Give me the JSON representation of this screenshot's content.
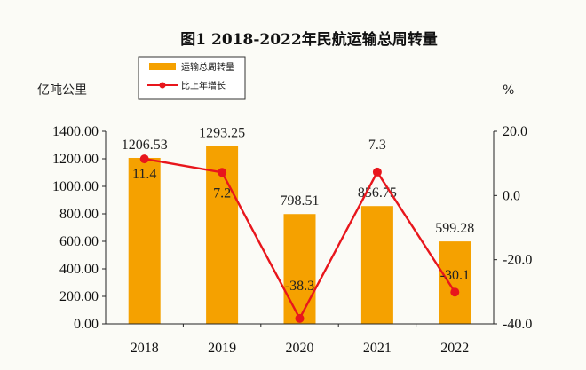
{
  "chart_data": {
    "type": "bar",
    "title": "图1 2018-2022年民航运输总周转量",
    "categories": [
      "2018",
      "2019",
      "2020",
      "2021",
      "2022"
    ],
    "left_axis_unit": "亿吨公里",
    "right_axis_unit": "%",
    "left_ticks": [
      "0.00",
      "200.00",
      "400.00",
      "600.00",
      "800.00",
      "1000.00",
      "1200.00",
      "1400.00"
    ],
    "right_ticks": [
      "-40.0",
      "-20.0",
      "0.0",
      "20.0"
    ],
    "ylim_left": [
      0,
      1400
    ],
    "ylim_right": [
      -40,
      20
    ],
    "legend_position": "top-left",
    "series": [
      {
        "name": "运输总周转量",
        "type": "bar",
        "axis": "left",
        "color": "#F5A100",
        "values": [
          1206.53,
          1293.25,
          798.51,
          856.75,
          599.28
        ],
        "labels": [
          "1206.53",
          "1293.25",
          "798.51",
          "856.75",
          "599.28"
        ]
      },
      {
        "name": "比上年增长",
        "type": "line",
        "axis": "right",
        "color": "#E8161C",
        "values": [
          11.4,
          7.2,
          -38.3,
          7.3,
          -30.1
        ],
        "labels": [
          "11.4",
          "7.2",
          "-38.3",
          "7.3",
          "-30.1"
        ]
      }
    ]
  }
}
